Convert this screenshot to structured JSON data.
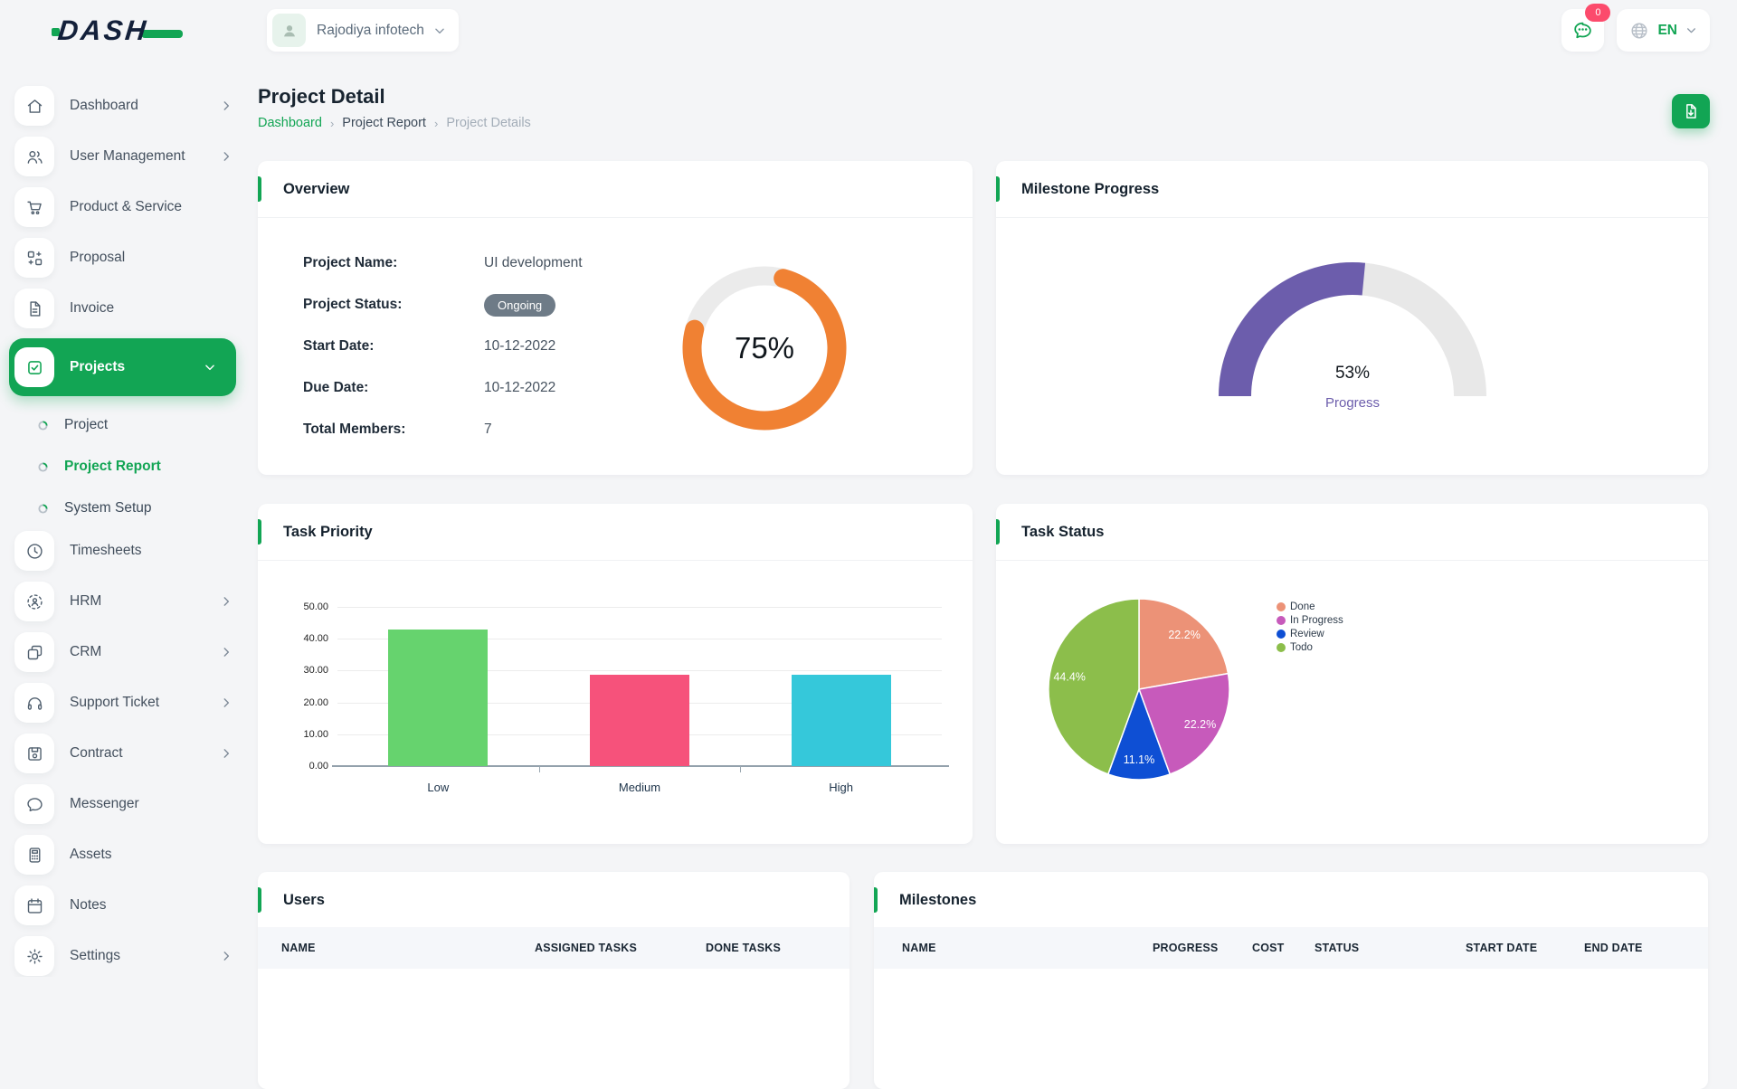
{
  "brand": {
    "name": "DASH"
  },
  "header": {
    "company_name": "Rajodiya infotech",
    "notification_count": "0",
    "language": "EN"
  },
  "page": {
    "title": "Project Detail"
  },
  "breadcrumb": {
    "items": [
      "Dashboard",
      "Project Report",
      "Project Details"
    ]
  },
  "sidebar": {
    "items": [
      {
        "label": "Dashboard"
      },
      {
        "label": "User Management"
      },
      {
        "label": "Product & Service"
      },
      {
        "label": "Proposal"
      },
      {
        "label": "Invoice"
      },
      {
        "label": "Projects"
      },
      {
        "label": "Timesheets"
      },
      {
        "label": "HRM"
      },
      {
        "label": "CRM"
      },
      {
        "label": "Support Ticket"
      },
      {
        "label": "Contract"
      },
      {
        "label": "Messenger"
      },
      {
        "label": "Assets"
      },
      {
        "label": "Notes"
      },
      {
        "label": "Settings"
      }
    ],
    "projects_sub": [
      {
        "label": "Project"
      },
      {
        "label": "Project Report"
      },
      {
        "label": "System Setup"
      }
    ]
  },
  "overview": {
    "title": "Overview",
    "fields": [
      {
        "label": "Project Name:",
        "value": "UI development"
      },
      {
        "label": "Project Status:",
        "value": "Ongoing"
      },
      {
        "label": "Start Date:",
        "value": "10-12-2022"
      },
      {
        "label": "Due Date:",
        "value": "10-12-2022"
      },
      {
        "label": "Total Members:",
        "value": "7"
      }
    ]
  },
  "cards": {
    "milestone_title": "Milestone Progress",
    "priority_title": "Task Priority",
    "status_title": "Task Status"
  },
  "users_table": {
    "title": "Users",
    "columns": [
      "NAME",
      "ASSIGNED TASKS",
      "DONE TASKS"
    ]
  },
  "milestones_table": {
    "title": "Milestones",
    "columns": [
      "NAME",
      "PROGRESS",
      "COST",
      "STATUS",
      "START DATE",
      "END DATE"
    ]
  },
  "chart_data": [
    {
      "id": "project_completion",
      "type": "donut",
      "value": 75,
      "label": "75%",
      "color": "#F08133",
      "track": "#ebebeb"
    },
    {
      "id": "milestone_progress",
      "type": "gauge",
      "value": 53,
      "label": "53%",
      "sublabel": "Progress",
      "color": "#6C5DAC",
      "track": "#e8e8e8"
    },
    {
      "id": "task_priority",
      "type": "bar",
      "title": "Task Priority",
      "categories": [
        "Low",
        "Medium",
        "High"
      ],
      "values": [
        42.86,
        28.57,
        28.57
      ],
      "colors": [
        "#66D36E",
        "#F6527B",
        "#35C8DA"
      ],
      "ylim": [
        0,
        50
      ],
      "yticks": [
        "0.00",
        "10.00",
        "20.00",
        "30.00",
        "40.00",
        "50.00"
      ],
      "grid": true,
      "xlabel": "",
      "ylabel": ""
    },
    {
      "id": "task_status",
      "type": "pie",
      "title": "Task Status",
      "labels": [
        "Done",
        "In Progress",
        "Review",
        "Todo"
      ],
      "values": [
        22.2,
        22.2,
        11.1,
        44.4
      ],
      "display_values": [
        "22.2%",
        "22.2%",
        "11.1%",
        "44.4%"
      ],
      "colors": [
        "#EC9277",
        "#C75ABB",
        "#0E4FD4",
        "#8CBE4B"
      ],
      "legend_position": "right"
    }
  ]
}
